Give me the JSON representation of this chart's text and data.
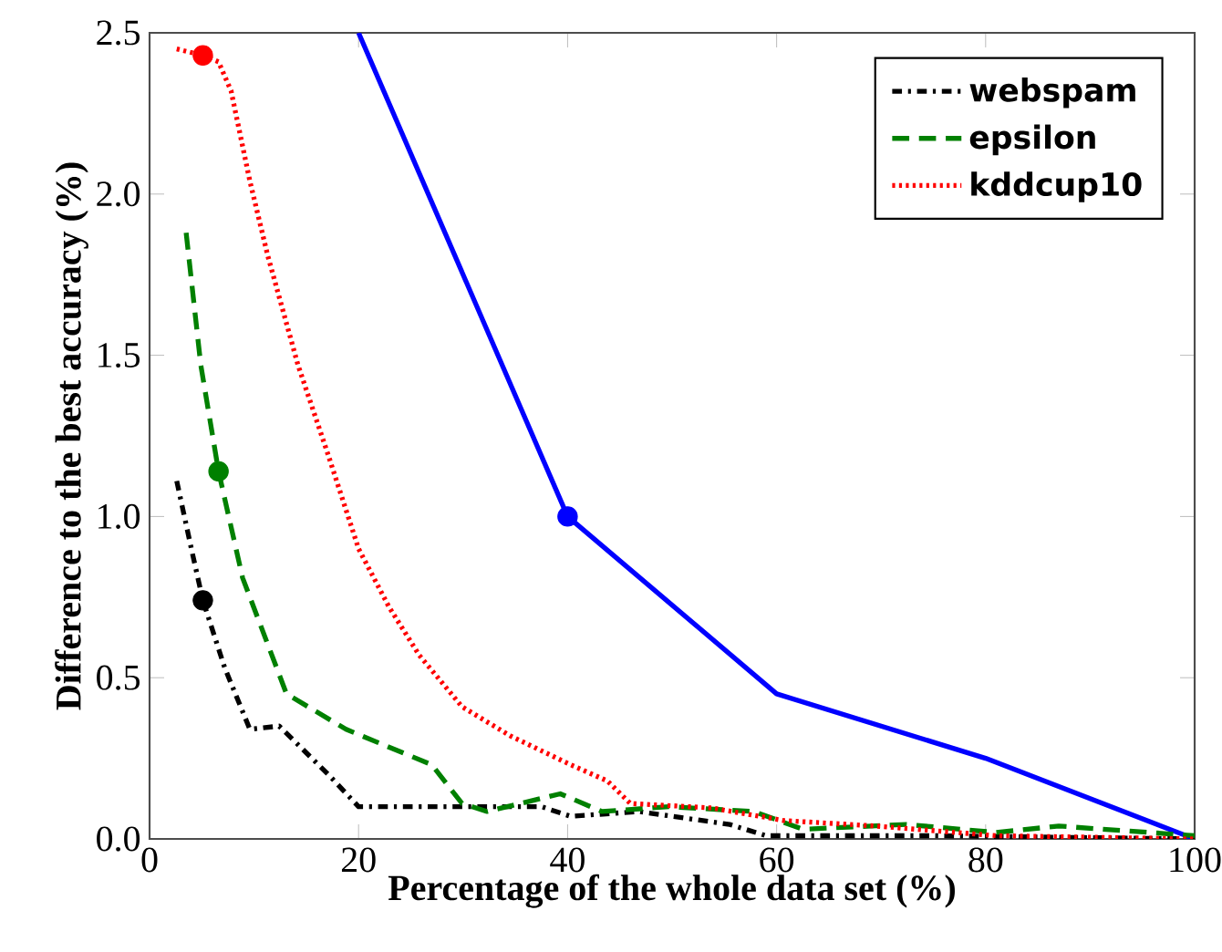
{
  "chart_data": {
    "type": "line",
    "xlabel": "Percentage of the whole data set (%)",
    "ylabel": "Difference to the best accuracy (%)",
    "xlim": [
      0,
      100
    ],
    "ylim": [
      0,
      2.5
    ],
    "xticks": [
      0,
      20,
      40,
      60,
      80,
      100
    ],
    "yticks": [
      {
        "value": 0,
        "label": "0.0"
      },
      {
        "value": 0.5,
        "label": "0.5"
      },
      {
        "value": 1,
        "label": "1.0"
      },
      {
        "value": 1.5,
        "label": "1.5"
      },
      {
        "value": 2,
        "label": "2.0"
      },
      {
        "value": 2.5,
        "label": "2.5"
      }
    ],
    "legend": "top right",
    "grid": false,
    "series": [
      {
        "color": "#0000ff",
        "line_style": "solid",
        "x": [
          20,
          40,
          60,
          80,
          100
        ],
        "values": [
          2.5,
          1.0,
          0.45,
          0.25,
          0
        ]
      },
      {
        "name": "webspam",
        "color": "#000000",
        "line_style": "dashdot",
        "x": [
          2.6,
          4,
          5.1,
          7.2,
          9.6,
          12.4,
          17.1,
          20,
          27.6,
          37.5,
          40.3,
          46.8,
          55.5,
          59,
          75,
          100
        ],
        "values": [
          1.11,
          0.9,
          0.74,
          0.53,
          0.34,
          0.35,
          0.2,
          0.1,
          0.1,
          0.1,
          0.07,
          0.085,
          0.045,
          0.01,
          0.01,
          0
        ]
      },
      {
        "name": "epsilon",
        "color": "#008000",
        "line_style": "dashed",
        "x": [
          3.5,
          4.9,
          6.6,
          8.9,
          13.1,
          18.8,
          27,
          29.9,
          32.3,
          39.3,
          43.3,
          49.7,
          57.8,
          62.5,
          72.4,
          81,
          87,
          100
        ],
        "values": [
          1.88,
          1.47,
          1.14,
          0.81,
          0.45,
          0.34,
          0.23,
          0.11,
          0.085,
          0.14,
          0.085,
          0.1,
          0.085,
          0.03,
          0.045,
          0.02,
          0.04,
          0.01
        ]
      },
      {
        "name": "kddcup10",
        "color": "#ff0000",
        "line_style": "dotted",
        "x": [
          2.6,
          5.1,
          6.6,
          7.8,
          9.6,
          11.3,
          14.2,
          17.1,
          20,
          22.9,
          25.8,
          29.9,
          34.5,
          40.3,
          43.8,
          46,
          53.8,
          60.7,
          69.5,
          81,
          100
        ],
        "values": [
          2.45,
          2.43,
          2.41,
          2.32,
          2.04,
          1.81,
          1.47,
          1.19,
          0.9,
          0.72,
          0.57,
          0.41,
          0.32,
          0.23,
          0.18,
          0.11,
          0.096,
          0.057,
          0.04,
          0.01,
          0
        ]
      },
      {
        "type": "scatter",
        "marker": "circle",
        "color": "#0000ff",
        "x": [
          40
        ],
        "values": [
          1.0
        ]
      },
      {
        "type": "scatter",
        "marker": "circle",
        "color": "#000000",
        "x": [
          5.1
        ],
        "values": [
          0.74
        ]
      },
      {
        "type": "scatter",
        "marker": "circle",
        "color": "#008000",
        "x": [
          6.6
        ],
        "values": [
          1.14
        ]
      },
      {
        "type": "scatter",
        "marker": "circle",
        "color": "#ff0000",
        "x": [
          5.1
        ],
        "values": [
          2.43
        ]
      }
    ]
  }
}
